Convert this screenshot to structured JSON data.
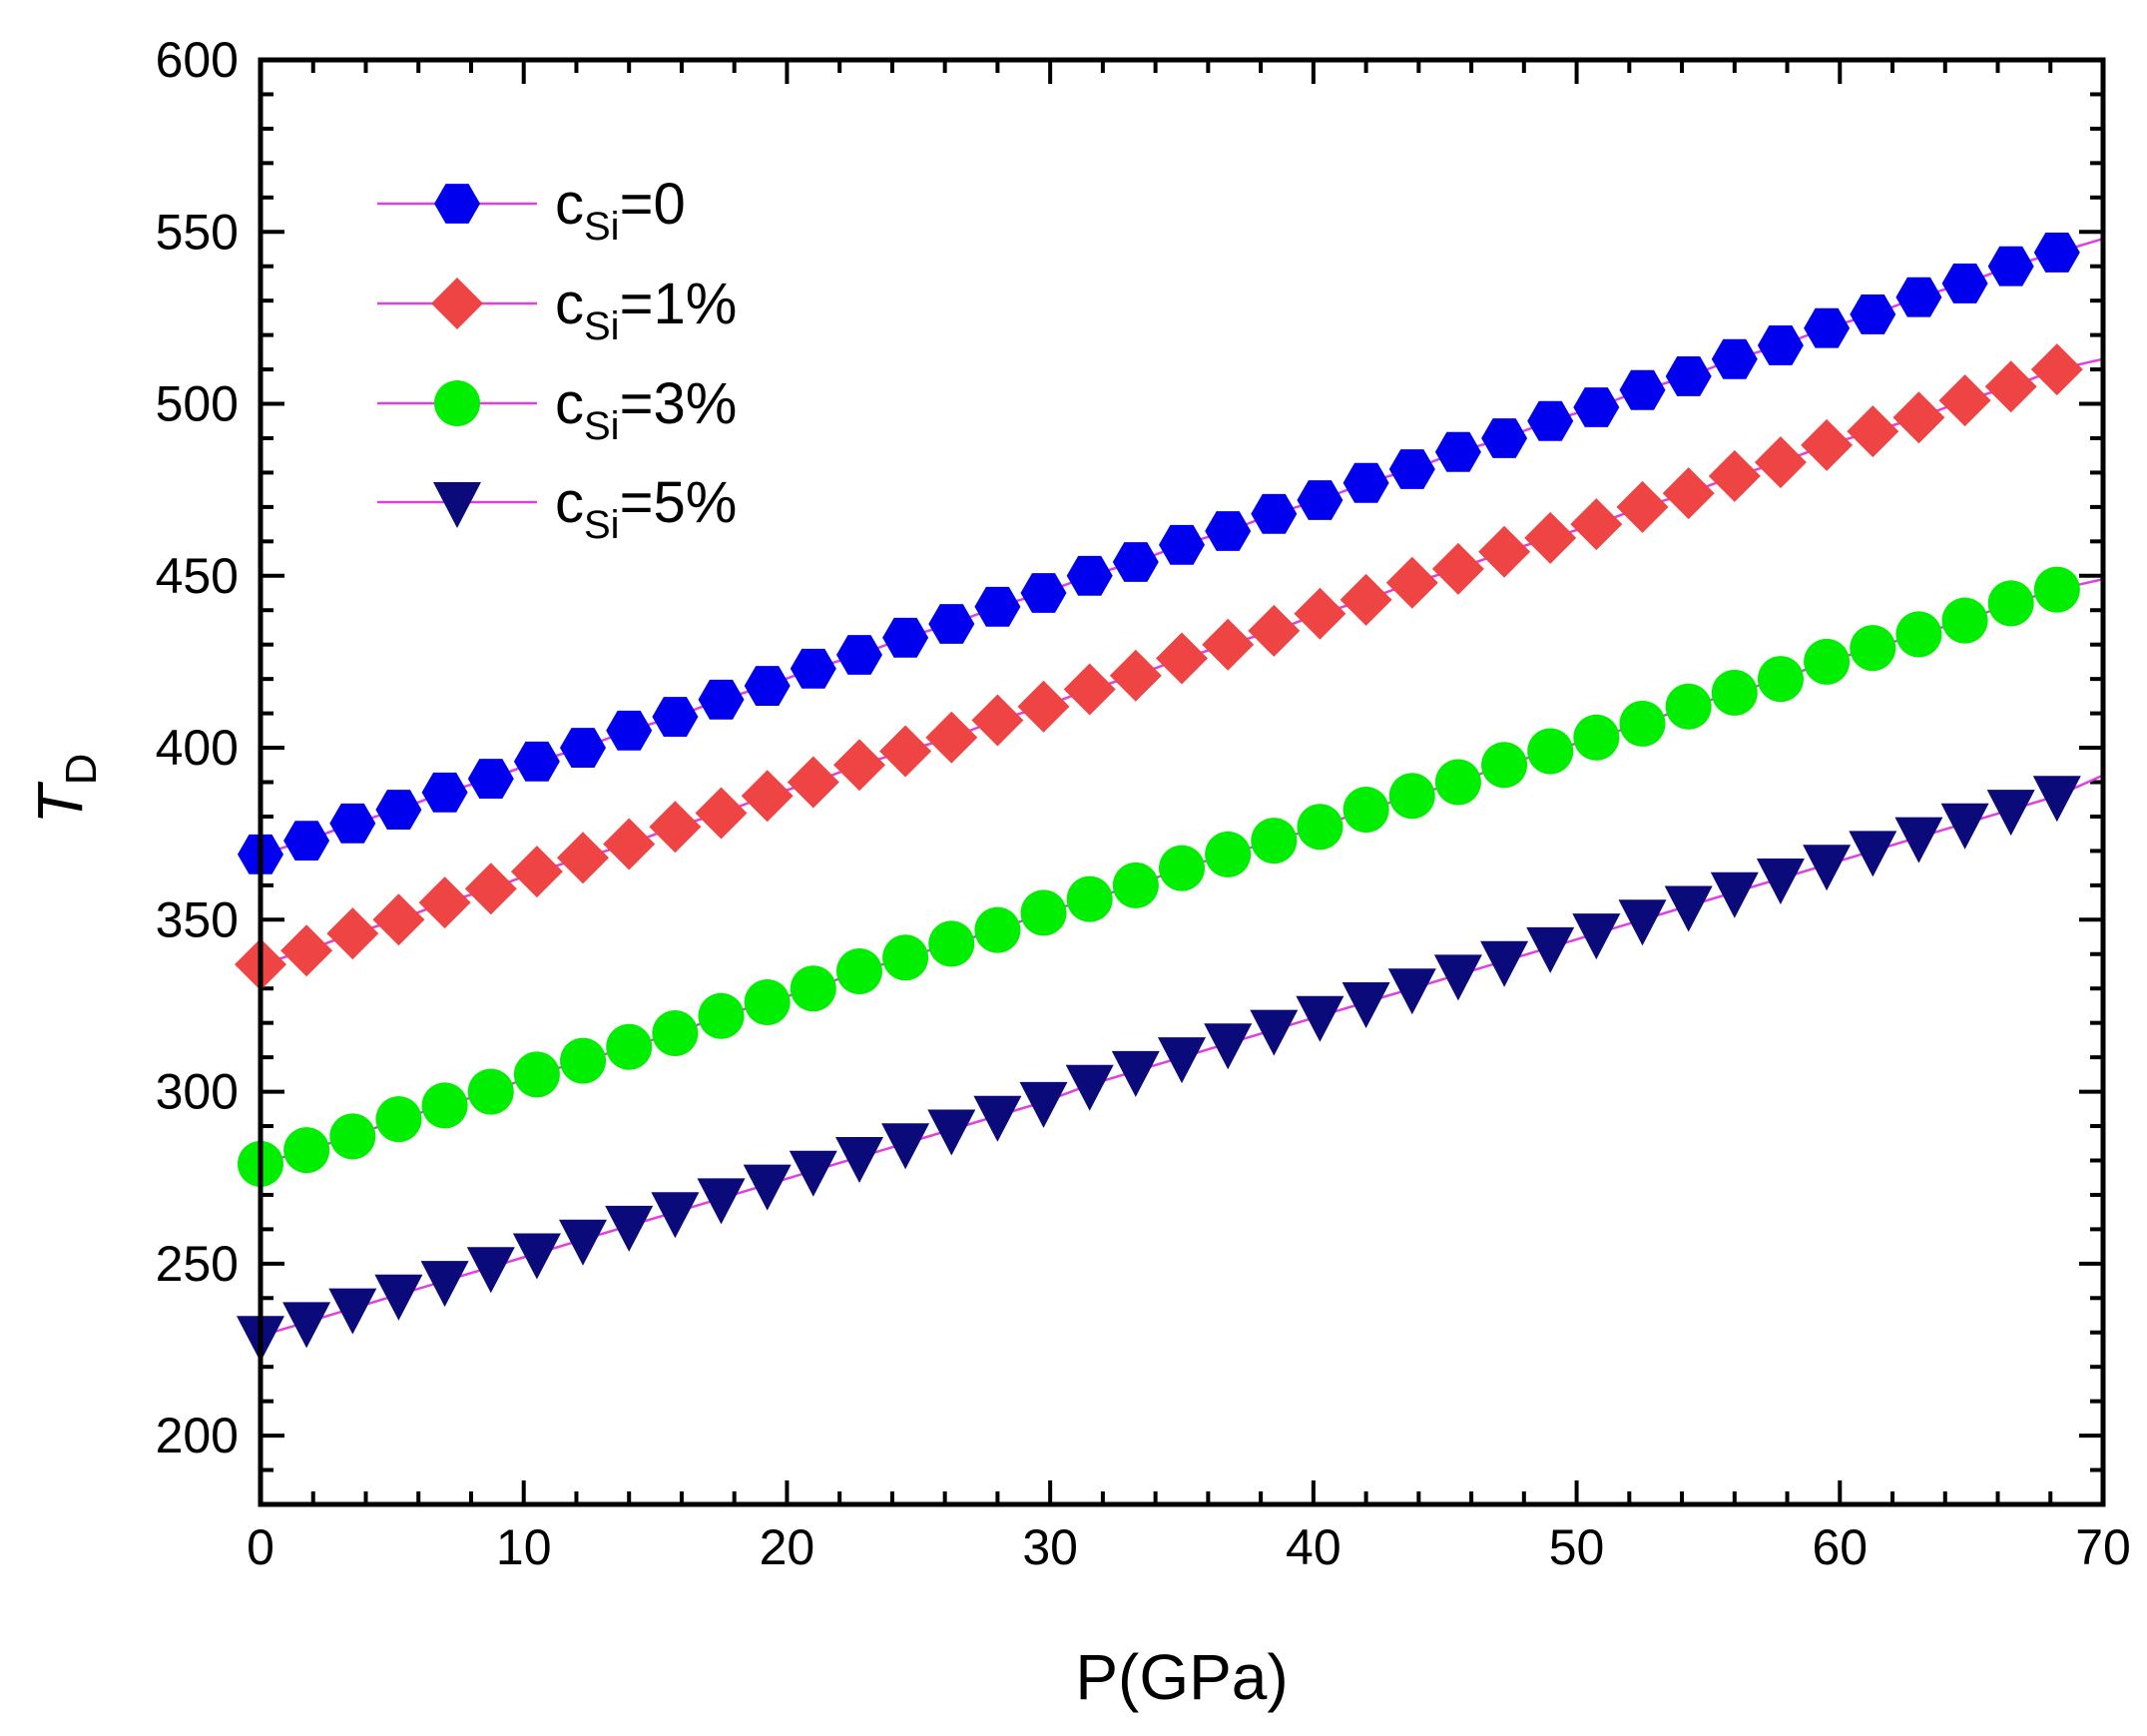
{
  "chart_data": {
    "type": "line",
    "title": "",
    "xlabel": "P(GPa)",
    "ylabel": "T",
    "ylabel_subscript": "D",
    "xlim": [
      0,
      70
    ],
    "ylim": [
      180,
      600
    ],
    "xticks": [
      0,
      10,
      20,
      30,
      40,
      50,
      60,
      70
    ],
    "yticks": [
      200,
      250,
      300,
      350,
      400,
      450,
      500,
      550,
      600
    ],
    "grid": false,
    "legend_position": "top-left",
    "line_color": "#e040e0",
    "x": [
      0,
      1.75,
      3.5,
      5.25,
      7.0,
      8.75,
      10.5,
      12.25,
      14.0,
      15.75,
      17.5,
      19.25,
      21.0,
      22.75,
      24.5,
      26.25,
      28.0,
      29.75,
      31.5,
      33.25,
      35.0,
      36.75,
      38.5,
      40.25,
      42.0,
      43.75,
      45.5,
      47.25,
      49.0,
      50.75,
      52.5,
      54.25,
      56.0,
      57.75,
      59.5,
      61.25,
      63.0,
      64.75,
      66.5,
      68.25
    ],
    "line_end_x": 70,
    "series": [
      {
        "name": "c",
        "name_subscript": "Si",
        "name_suffix": "=0",
        "marker": "hexagon",
        "color": "#0000ee",
        "values": [
          369,
          373,
          378,
          382,
          387,
          391,
          396,
          400,
          405,
          409,
          414,
          418,
          423,
          427,
          432,
          436,
          441,
          445,
          450,
          454,
          459,
          463,
          468,
          472,
          477,
          481,
          486,
          490,
          495,
          499,
          504,
          508,
          513,
          517,
          522,
          526,
          531,
          535,
          540,
          544
        ],
        "line_end_value": 548
      },
      {
        "name": "c",
        "name_subscript": "Si",
        "name_suffix": "=1%",
        "marker": "diamond",
        "color": "#ee4444",
        "values": [
          337,
          341,
          346,
          350,
          355,
          359,
          364,
          368,
          372,
          377,
          381,
          386,
          390,
          395,
          399,
          403,
          408,
          412,
          417,
          421,
          426,
          430,
          434,
          439,
          443,
          448,
          452,
          457,
          461,
          465,
          470,
          474,
          479,
          483,
          488,
          492,
          496,
          501,
          505,
          510
        ],
        "line_end_value": 513
      },
      {
        "name": "c",
        "name_subscript": "Si",
        "name_suffix": "=3%",
        "marker": "circle",
        "color": "#00ee00",
        "values": [
          279,
          283,
          287,
          292,
          296,
          300,
          305,
          309,
          313,
          317,
          322,
          326,
          330,
          335,
          339,
          343,
          347,
          352,
          356,
          360,
          365,
          369,
          373,
          377,
          382,
          386,
          390,
          395,
          399,
          403,
          407,
          412,
          416,
          420,
          425,
          429,
          433,
          437,
          442,
          446
        ],
        "line_end_value": 449
      },
      {
        "name": "c",
        "name_subscript": "Si",
        "name_suffix": "=5%",
        "marker": "triangle-down",
        "color": "#0a0a7a",
        "values": [
          229,
          233,
          237,
          241,
          245,
          249,
          253,
          257,
          261,
          265,
          269,
          273,
          277,
          281,
          285,
          289,
          293,
          297,
          302,
          306,
          310,
          314,
          318,
          322,
          326,
          330,
          334,
          338,
          342,
          346,
          350,
          354,
          358,
          362,
          366,
          370,
          374,
          378,
          382,
          386
        ],
        "line_end_value": 392
      }
    ]
  }
}
